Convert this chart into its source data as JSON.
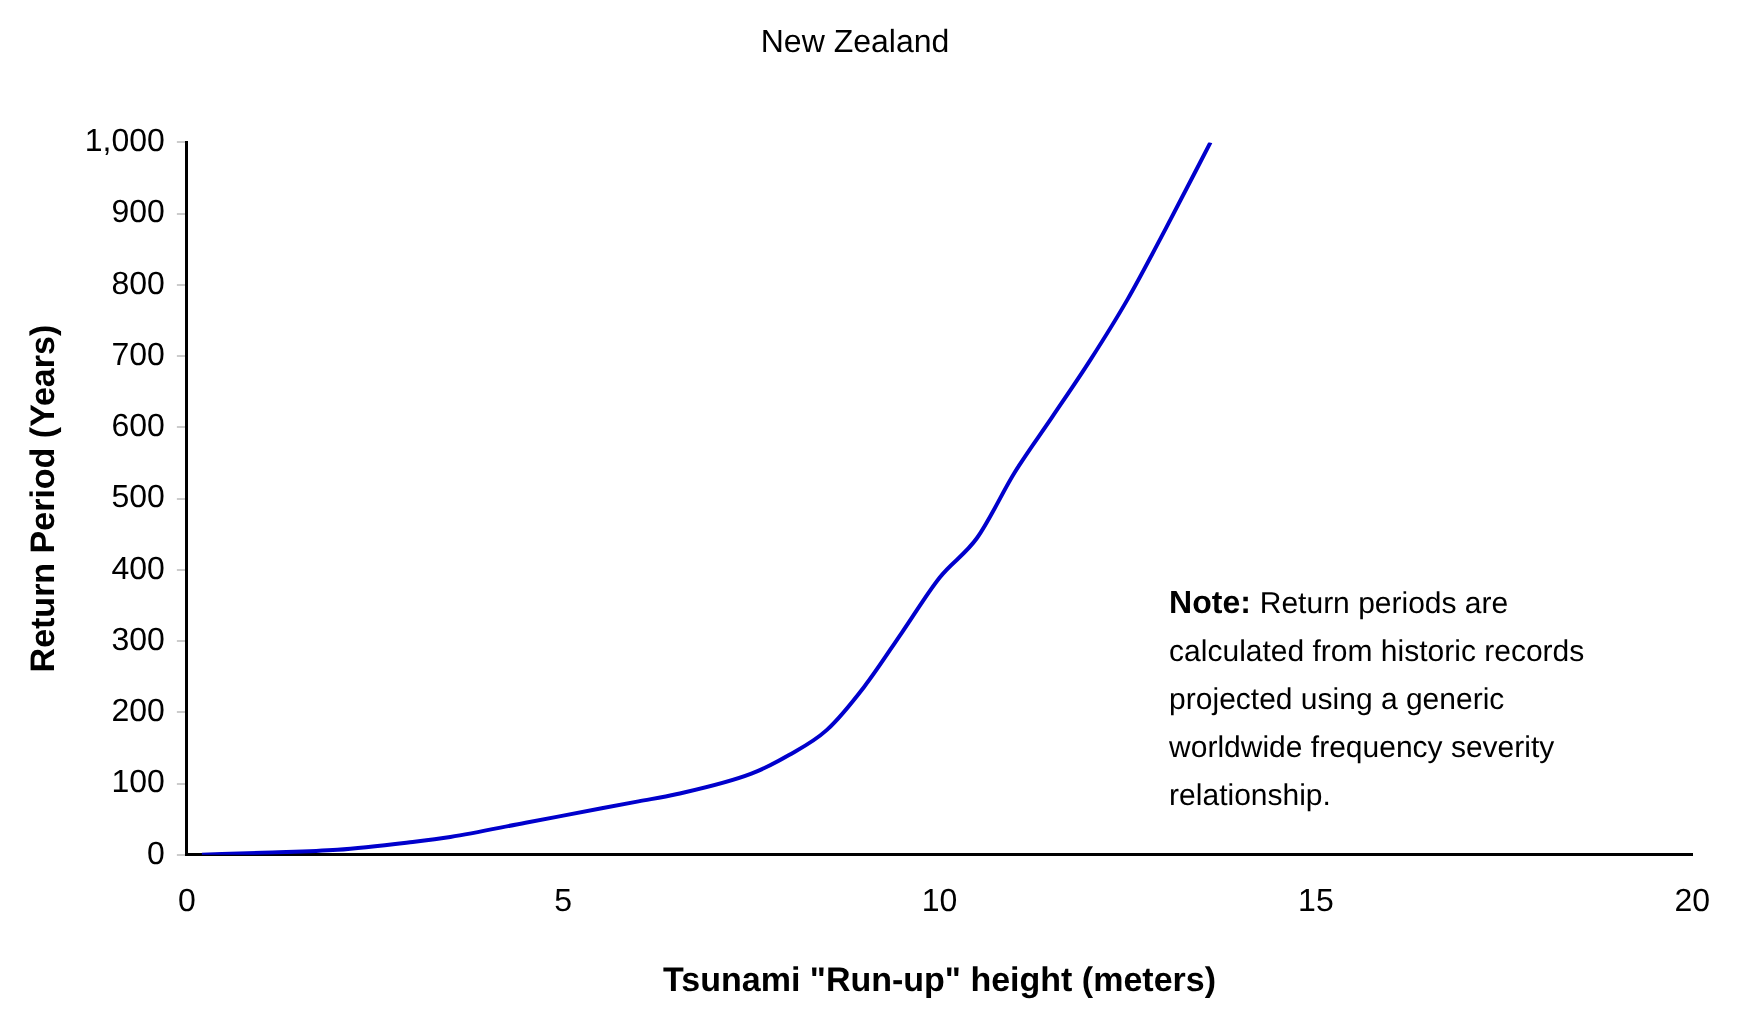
{
  "chart_data": {
    "type": "line",
    "title": "New Zealand",
    "xlabel": "Tsunami \"Run-up\" height (meters)",
    "ylabel": "Return Period (Years)",
    "series": [
      {
        "color": "#0000cc",
        "x": [
          0.2,
          1,
          2,
          3,
          3.5,
          4.5,
          5,
          6,
          6.5,
          7.5,
          8,
          8.5,
          9,
          9.5,
          10,
          10.5,
          11,
          11.5,
          12,
          12.5,
          13,
          13.6
        ],
        "values": [
          0,
          3,
          7,
          18,
          25,
          45,
          55,
          75,
          85,
          114,
          140,
          175,
          236,
          312,
          389,
          445,
          537,
          615,
          694,
          780,
          878,
          1000
        ]
      }
    ],
    "xlim": [
      0,
      20
    ],
    "xticks": [
      0,
      5,
      10,
      15,
      20
    ],
    "ylim": [
      0,
      1000
    ],
    "yticks": [
      0,
      100,
      200,
      300,
      400,
      500,
      600,
      700,
      800,
      900,
      {
        "value": 1000,
        "label": "1,000"
      }
    ],
    "grid": false,
    "legend": false,
    "marker": "none",
    "line_style": "solid",
    "annotations": [
      {
        "text": "**Note:** Return periods are calculated from historic records projected using a generic worldwide frequency severity relationship."
      }
    ]
  }
}
